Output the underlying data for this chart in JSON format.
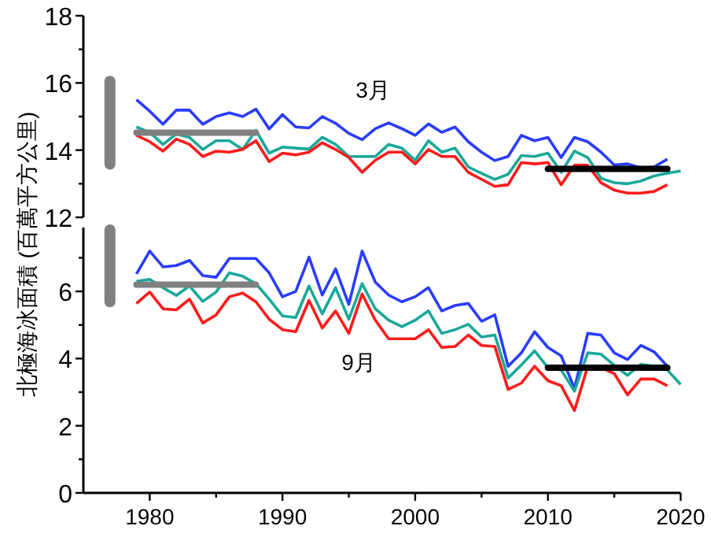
{
  "chart_data": [
    {
      "type": "line",
      "ylabel": "北極海冰面積 (百萬平方公里)",
      "xlim": [
        1975,
        2020
      ],
      "ylim": [
        12,
        18
      ],
      "yticks": [
        12,
        {
          "value": 13,
          "label": null
        },
        14,
        {
          "value": 15,
          "label": null
        },
        16,
        {
          "value": 17,
          "label": null
        },
        18
      ],
      "tick_labels": "y",
      "annotations": [
        "3月"
      ],
      "x": [
        1979,
        1980,
        1981,
        1982,
        1983,
        1984,
        1985,
        1986,
        1987,
        1988,
        1989,
        1990,
        1991,
        1992,
        1993,
        1994,
        1995,
        1996,
        1997,
        1998,
        1999,
        2000,
        2001,
        2002,
        2003,
        2004,
        2005,
        2006,
        2007,
        2008,
        2009,
        2010,
        2011,
        2012,
        2013,
        2014,
        2015,
        2016,
        2017,
        2018,
        2019,
        2020
      ],
      "series": [
        {
          "color": "#2a3cff",
          "values": [
            15.5,
            15.16,
            14.77,
            15.19,
            15.19,
            14.77,
            15.0,
            15.11,
            15.0,
            15.22,
            14.63,
            15.06,
            14.69,
            14.66,
            15.0,
            14.8,
            14.5,
            14.31,
            14.64,
            14.81,
            14.64,
            14.44,
            14.78,
            14.53,
            14.69,
            14.25,
            13.94,
            13.69,
            13.81,
            14.44,
            14.28,
            14.38,
            13.78,
            14.38,
            14.25,
            13.94,
            13.56,
            13.59,
            13.47,
            13.5,
            13.73,
            null
          ]
        },
        {
          "color": "#1aa89a",
          "values": [
            14.69,
            14.53,
            14.17,
            14.48,
            14.38,
            14.02,
            14.28,
            14.28,
            14.02,
            14.59,
            13.91,
            14.09,
            14.06,
            14.03,
            14.38,
            14.17,
            13.81,
            13.81,
            13.81,
            14.17,
            14.06,
            13.7,
            14.28,
            13.94,
            14.06,
            13.5,
            13.31,
            13.13,
            13.28,
            13.84,
            13.81,
            13.91,
            13.34,
            13.97,
            13.78,
            13.16,
            13.03,
            13.0,
            13.08,
            13.23,
            13.31,
            13.38
          ]
        },
        {
          "color": "#ff1a1a",
          "values": [
            14.44,
            14.25,
            13.97,
            14.33,
            14.17,
            13.81,
            13.97,
            13.94,
            14.02,
            14.28,
            13.66,
            13.91,
            13.86,
            13.94,
            14.22,
            14.02,
            13.78,
            13.34,
            13.7,
            13.94,
            13.94,
            13.59,
            14.02,
            13.81,
            13.81,
            13.34,
            13.13,
            12.92,
            12.97,
            13.63,
            13.59,
            13.63,
            12.97,
            13.55,
            13.55,
            13.03,
            12.81,
            12.72,
            12.72,
            12.77,
            12.97,
            null
          ]
        },
        {
          "color": "#808080",
          "x": [
            1979,
            1988
          ],
          "values": [
            14.52,
            14.52
          ]
        },
        {
          "color": "#000000",
          "x": [
            2010,
            2019
          ],
          "values": [
            13.44,
            13.44
          ]
        },
        {
          "color": "#808080",
          "x": [
            1977,
            1977
          ],
          "values": [
            13.58,
            16.05
          ]
        }
      ]
    },
    {
      "type": "line",
      "xlim": [
        1975,
        2020
      ],
      "xticks": [
        1980,
        {
          "value": 1985,
          "label": null
        },
        1990,
        {
          "value": 1995,
          "label": null
        },
        2000,
        {
          "value": 2005,
          "label": null
        },
        2010,
        {
          "value": 2015,
          "label": null
        },
        2020
      ],
      "ylim": [
        0,
        7.9
      ],
      "yticks": [
        0,
        {
          "value": 1,
          "label": null
        },
        2,
        {
          "value": 3,
          "label": null
        },
        4,
        {
          "value": 5,
          "label": null
        },
        6,
        {
          "value": 7,
          "label": null
        }
      ],
      "annotations": [
        "9月"
      ],
      "x": [
        1979,
        1980,
        1981,
        1982,
        1983,
        1984,
        1985,
        1986,
        1987,
        1988,
        1989,
        1990,
        1991,
        1992,
        1993,
        1994,
        1995,
        1996,
        1997,
        1998,
        1999,
        2000,
        2001,
        2002,
        2003,
        2004,
        2005,
        2006,
        2007,
        2008,
        2009,
        2010,
        2011,
        2012,
        2013,
        2014,
        2015,
        2016,
        2017,
        2018,
        2019,
        2020
      ],
      "series": [
        {
          "color": "#2a3cff",
          "values": [
            6.52,
            7.2,
            6.73,
            6.77,
            6.92,
            6.47,
            6.42,
            6.98,
            6.98,
            6.98,
            6.55,
            5.84,
            6.0,
            7.02,
            5.89,
            6.67,
            5.61,
            7.2,
            6.27,
            5.89,
            5.69,
            5.84,
            6.11,
            5.42,
            5.58,
            5.64,
            5.11,
            5.3,
            3.77,
            4.17,
            4.8,
            4.33,
            4.08,
            3.11,
            4.75,
            4.7,
            4.17,
            3.97,
            4.39,
            4.2,
            3.77,
            null
          ]
        },
        {
          "color": "#1aa89a",
          "values": [
            6.3,
            6.36,
            6.11,
            5.88,
            6.16,
            5.7,
            5.98,
            6.55,
            6.45,
            6.23,
            5.77,
            5.27,
            5.22,
            6.16,
            5.33,
            6.11,
            5.17,
            6.23,
            5.48,
            5.14,
            4.95,
            5.14,
            5.42,
            4.75,
            4.86,
            5.02,
            4.64,
            4.7,
            3.42,
            3.81,
            4.23,
            3.73,
            3.66,
            3.03,
            4.17,
            4.13,
            3.8,
            3.5,
            3.83,
            3.77,
            3.66,
            3.23
          ]
        },
        {
          "color": "#ff1a1a",
          "values": [
            5.64,
            5.98,
            5.48,
            5.45,
            5.77,
            5.06,
            5.3,
            5.84,
            5.95,
            5.69,
            5.17,
            4.86,
            4.8,
            5.73,
            4.91,
            5.42,
            4.75,
            5.92,
            5.14,
            4.59,
            4.59,
            4.59,
            4.86,
            4.33,
            4.36,
            4.7,
            4.39,
            4.36,
            3.08,
            3.27,
            3.77,
            3.34,
            3.19,
            2.45,
            3.77,
            3.73,
            3.55,
            2.92,
            3.39,
            3.39,
            3.19,
            null
          ]
        },
        {
          "color": "#808080",
          "x": [
            1979,
            1988
          ],
          "values": [
            6.2,
            6.2
          ]
        },
        {
          "color": "#000000",
          "x": [
            2010,
            2019
          ],
          "values": [
            3.73,
            3.73
          ]
        },
        {
          "color": "#808080",
          "x": [
            1977,
            1977
          ],
          "values": [
            5.69,
            7.83
          ]
        }
      ]
    }
  ]
}
